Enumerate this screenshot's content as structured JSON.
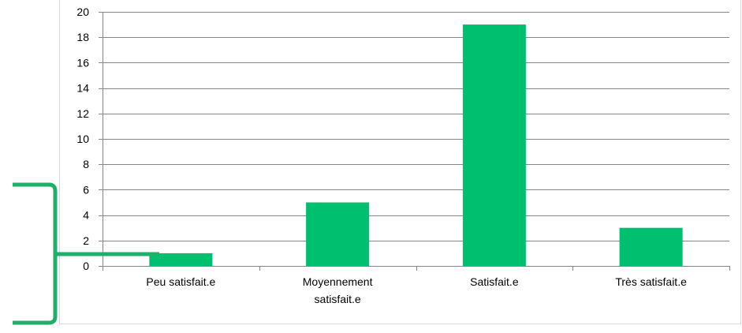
{
  "chart_data": {
    "type": "bar",
    "categories": [
      [
        "Peu satisfait.e"
      ],
      [
        "Moyennement",
        "satisfait.e"
      ],
      [
        "Satisfait.e"
      ],
      [
        "Très satisfait.e"
      ]
    ],
    "values": [
      1,
      5,
      19,
      3
    ],
    "ylim": [
      0,
      20
    ],
    "yticks": [
      0,
      2,
      4,
      6,
      8,
      10,
      12,
      14,
      16,
      18,
      20
    ],
    "grid": true,
    "legend": "none",
    "bar_color": "#00BF6F",
    "grid_color": "#868686",
    "frame_color": "#d9d9d9"
  },
  "decoration": {
    "bracket_color": "#1FAF6A"
  }
}
